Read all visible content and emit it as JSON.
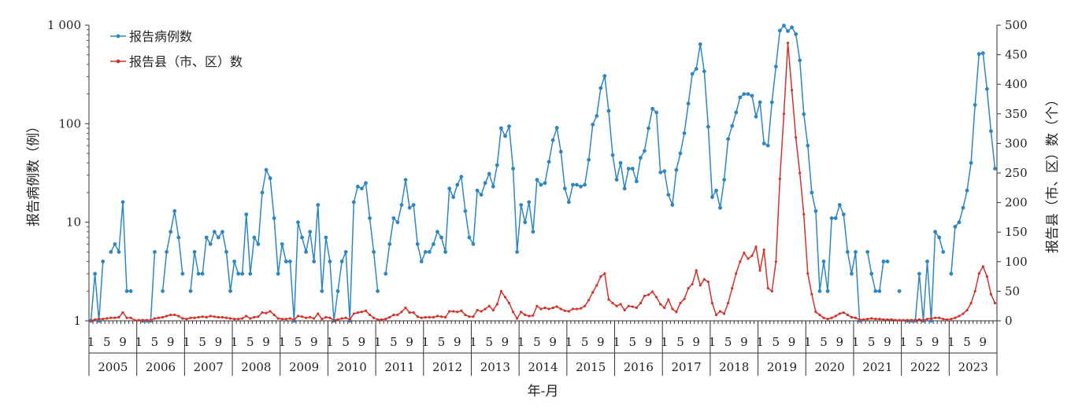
{
  "chart_data": {
    "type": "line",
    "xlabel": "年-月",
    "ylabel_left": "报告病例数（例）",
    "ylabel_right": "报告县（市、区）数（个）",
    "y_left_scale": "log",
    "y_left_lim": [
      1,
      1000
    ],
    "y_left_ticks": [
      "1",
      "10",
      "100",
      "1 000"
    ],
    "y_right_lim": [
      0,
      500
    ],
    "y_right_ticks": [
      "0",
      "50",
      "100",
      "150",
      "200",
      "250",
      "300",
      "350",
      "400",
      "450",
      "500"
    ],
    "month_tick_labels": [
      "1",
      "5",
      "9"
    ],
    "years": [
      "2005",
      "2006",
      "2007",
      "2008",
      "2009",
      "2010",
      "2011",
      "2012",
      "2013",
      "2014",
      "2015",
      "2016",
      "2017",
      "2018",
      "2019",
      "2020",
      "2021",
      "2022",
      "2023"
    ],
    "legend_position": "top-left",
    "grid": false,
    "colors": {
      "cases": "#2e86c1",
      "counties": "#d0342c"
    },
    "series": [
      {
        "name": "报告病例数",
        "axis": "left",
        "values": [
          1,
          3,
          1,
          4,
          null,
          5,
          6,
          5,
          16,
          2,
          2,
          null,
          null,
          1,
          1,
          1,
          5,
          null,
          2,
          5,
          8,
          13,
          7,
          3,
          null,
          2,
          5,
          3,
          3,
          7,
          6,
          8,
          7,
          8,
          5,
          2,
          4,
          3,
          3,
          12,
          3,
          7,
          6,
          20,
          34,
          28,
          11,
          3,
          6,
          4,
          4,
          1,
          10,
          7,
          5,
          8,
          4,
          15,
          2,
          7,
          4,
          1,
          2,
          4,
          5,
          1,
          16,
          23,
          22,
          25,
          11,
          5,
          2,
          null,
          3,
          6,
          11,
          10,
          15,
          27,
          14,
          15,
          6,
          4,
          5,
          5,
          6,
          8,
          7,
          5,
          22,
          18,
          24,
          29,
          13,
          7,
          6,
          21,
          19,
          25,
          31,
          23,
          38,
          90,
          75,
          94,
          35,
          5,
          15,
          10,
          16,
          8,
          27,
          24,
          25,
          41,
          68,
          91,
          52,
          22,
          16,
          24,
          24,
          23,
          24,
          43,
          98,
          120,
          230,
          305,
          135,
          48,
          27,
          40,
          22,
          35,
          35,
          26,
          45,
          53,
          90,
          142,
          130,
          32,
          33,
          19,
          15,
          34,
          50,
          80,
          160,
          320,
          360,
          640,
          340,
          93,
          18,
          21,
          14,
          27,
          70,
          95,
          130,
          185,
          200,
          200,
          192,
          118,
          165,
          63,
          60,
          165,
          380,
          880,
          990,
          870,
          950,
          810,
          440,
          125,
          60,
          20,
          13,
          2,
          4,
          2,
          11,
          11,
          15,
          12,
          5,
          3,
          5,
          1,
          null,
          5,
          3,
          2,
          2,
          4,
          4,
          null,
          null,
          2,
          null,
          1,
          1,
          1,
          3,
          1,
          4,
          1,
          8,
          7,
          5,
          null,
          3,
          9,
          10,
          14,
          21,
          40,
          155,
          510,
          520,
          225,
          84,
          35
        ]
      },
      {
        "name": "报告县（市、区）数",
        "axis": "right",
        "values": [
          0,
          2,
          3,
          3,
          4,
          5,
          5,
          6,
          14,
          5,
          5,
          1,
          1,
          1,
          1,
          1,
          4,
          5,
          6,
          8,
          10,
          10,
          8,
          4,
          3,
          5,
          5,
          6,
          7,
          6,
          8,
          7,
          6,
          6,
          5,
          4,
          3,
          3,
          4,
          8,
          4,
          6,
          7,
          14,
          13,
          16,
          10,
          4,
          3,
          3,
          4,
          2,
          8,
          7,
          5,
          6,
          4,
          12,
          3,
          6,
          5,
          1,
          2,
          4,
          5,
          2,
          12,
          14,
          15,
          17,
          10,
          5,
          2,
          2,
          3,
          6,
          10,
          10,
          15,
          22,
          14,
          14,
          7,
          5,
          6,
          6,
          6,
          8,
          7,
          6,
          16,
          16,
          15,
          17,
          10,
          7,
          7,
          18,
          16,
          20,
          25,
          18,
          28,
          50,
          40,
          30,
          15,
          4,
          15,
          10,
          8,
          9,
          25,
          20,
          22,
          20,
          22,
          24,
          20,
          17,
          16,
          20,
          20,
          21,
          25,
          35,
          48,
          60,
          75,
          80,
          36,
          30,
          25,
          28,
          18,
          25,
          24,
          22,
          30,
          42,
          44,
          49,
          40,
          28,
          22,
          36,
          20,
          15,
          30,
          37,
          55,
          62,
          85,
          60,
          70,
          66,
          30,
          10,
          16,
          12,
          30,
          55,
          80,
          100,
          115,
          105,
          110,
          125,
          85,
          120,
          55,
          50,
          100,
          240,
          350,
          470,
          390,
          310,
          250,
          180,
          80,
          45,
          15,
          10,
          5,
          3,
          5,
          8,
          12,
          14,
          10,
          6,
          5,
          2,
          2,
          3,
          4,
          3,
          3,
          2,
          2,
          2,
          1,
          1,
          1,
          1,
          1,
          1,
          2,
          1,
          3,
          4,
          5,
          5,
          3,
          2,
          3,
          5,
          8,
          12,
          18,
          30,
          50,
          80,
          92,
          75,
          45,
          30
        ]
      }
    ]
  }
}
